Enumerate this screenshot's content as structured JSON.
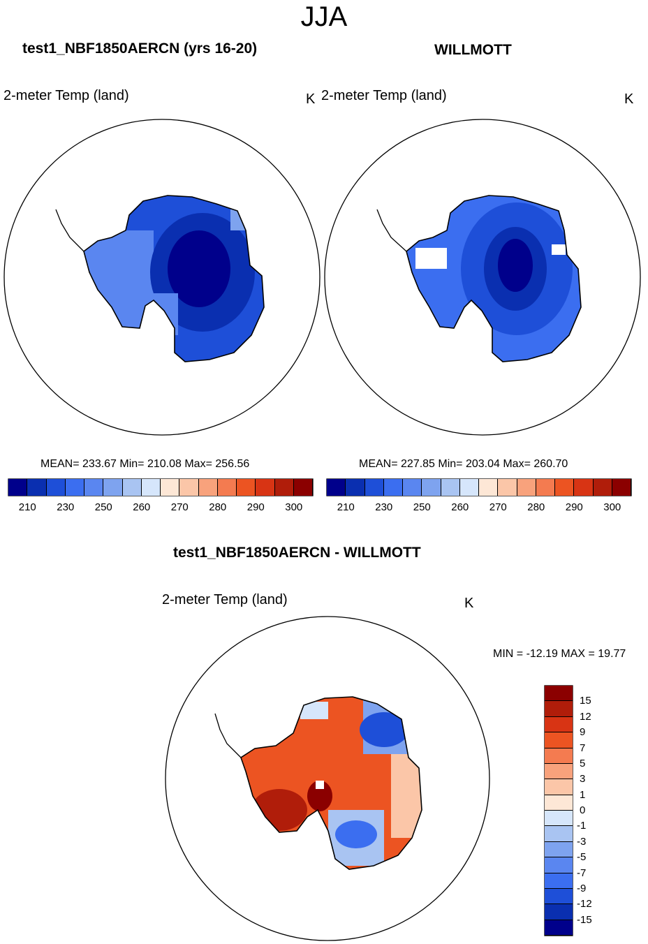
{
  "season": "JJA",
  "panels": [
    {
      "title": "test1_NBF1850AERCN (yrs 16-20)",
      "variable": "2-meter Temp (land)",
      "units": "K",
      "stats": "MEAN= 233.67  Min= 210.08  Max= 256.56"
    },
    {
      "title": "WILLMOTT",
      "variable": "2-meter Temp (land)",
      "units": "K",
      "stats": "MEAN= 227.85  Min= 203.04  Max= 260.70"
    }
  ],
  "colorbar_temp": {
    "colors": [
      "#00008b",
      "#0a2fb0",
      "#1e4fd8",
      "#3b6ef0",
      "#5a86f0",
      "#7ea3ef",
      "#a9c4f2",
      "#d6e6fb",
      "#fde7d6",
      "#fbc6a8",
      "#f8a27c",
      "#f47b50",
      "#ec5422",
      "#d83414",
      "#b01d0a",
      "#8b0000"
    ],
    "ticks": [
      "210",
      "230",
      "250",
      "260",
      "270",
      "280",
      "290",
      "300"
    ]
  },
  "diff": {
    "title": "test1_NBF1850AERCN - WILLMOTT",
    "variable": "2-meter Temp (land)",
    "units": "K",
    "minmax": "MIN = -12.19 MAX =  19.77"
  },
  "colorbar_diff": {
    "colors": [
      "#8b0000",
      "#b01d0a",
      "#d83414",
      "#ec5422",
      "#f47b50",
      "#f8a27c",
      "#fbc6a8",
      "#fde7d6",
      "#d6e6fb",
      "#a9c4f2",
      "#7ea3ef",
      "#5a86f0",
      "#3b6ef0",
      "#1e4fd8",
      "#0a2fb0",
      "#00008b"
    ],
    "ticks": [
      "15",
      "12",
      "9",
      "7",
      "5",
      "3",
      "1",
      "0",
      "-1",
      "-3",
      "-5",
      "-7",
      "-9",
      "-12",
      "-15"
    ]
  }
}
